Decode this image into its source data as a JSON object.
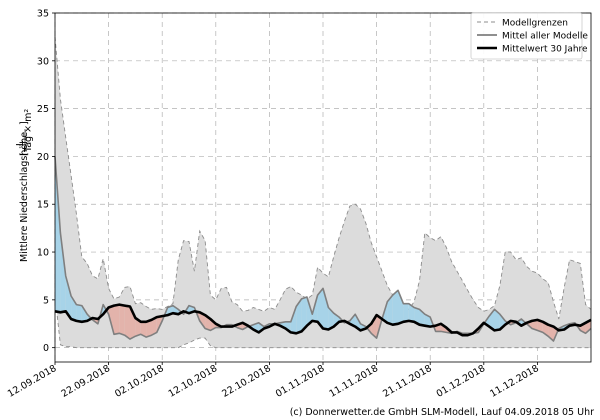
{
  "chart_data": {
    "type": "line",
    "ylabel": "Mittlere Niederschlagshöhe [l/(m²·d)]",
    "ylabel_main": "Mittlere Niederschlagshöhe",
    "ylabel_unit_open": "[",
    "ylabel_unit_num": "L",
    "ylabel_unit_den": "Tag × m²",
    "ylabel_unit_close": "]",
    "ylim": [
      -1.5,
      35
    ],
    "yticks": [
      0,
      5,
      10,
      15,
      20,
      25,
      30,
      35
    ],
    "xlim": [
      0,
      100
    ],
    "grid": true,
    "x_tick_positions": [
      0,
      10,
      20,
      30,
      40,
      50,
      60,
      70,
      80,
      90
    ],
    "x_tick_labels": [
      "12.09.2018",
      "22.09.2018",
      "02.10.2018",
      "12.10.2018",
      "22.10.2018",
      "01.11.2018",
      "11.11.2018",
      "21.11.2018",
      "01.12.2018",
      "11.12.2018"
    ],
    "legend": {
      "position": "top-right",
      "entries": [
        "Modellgrenzen",
        "Mittel aller Modelle",
        "Mittelwert 30 Jahre"
      ]
    },
    "colors": {
      "range_fill": "#dcdcdc",
      "range_line": "#8c8c8c",
      "mean_line": "#7f7f7f",
      "clim_line": "#000000",
      "above_fill": "#a7d3e8",
      "below_fill": "#e3b3ab"
    },
    "series": [
      {
        "name": "Modellgrenzen",
        "upper": [
          32.5,
          26,
          22,
          18,
          14,
          9.5,
          8.8,
          7.5,
          7.2,
          9.3,
          6.2,
          5.1,
          5.3,
          6.3,
          6.4,
          4.6,
          4.7,
          4.3,
          4.0,
          4.1,
          4.0,
          4.3,
          4.6,
          9.2,
          11.2,
          11.1,
          8.0,
          12.2,
          11.2,
          5.5,
          5.0,
          6.2,
          6.3,
          4.8,
          4.5,
          3.8,
          3.9,
          4.2,
          4.0,
          3.8,
          4.2,
          4.0,
          5.0,
          6.1,
          6.4,
          5.8,
          5.5,
          5.1,
          5.5,
          8.4,
          7.8,
          7.4,
          9.5,
          11.5,
          13.2,
          14.8,
          15.0,
          14.5,
          13.0,
          11.0,
          9.5,
          8.0,
          6.5,
          5.5,
          4.8,
          4.2,
          4.0,
          4.8,
          7.0,
          12.0,
          11.5,
          11.2,
          11.6,
          10.5,
          9.0,
          8.0,
          7.0,
          6.0,
          5.0,
          4.2,
          3.8,
          4.0,
          4.4,
          6.5,
          10.0,
          10.0,
          9.2,
          9.4,
          8.5,
          8.0,
          7.8,
          7.2,
          6.8,
          4.8,
          3.0,
          6.3,
          9.2,
          9.0,
          8.8,
          4.5,
          4.0
        ],
        "lower": [
          5.5,
          0.3,
          0.1,
          0.1,
          0.0,
          0.0,
          0.0,
          0.0,
          0.0,
          0.0,
          0.0,
          0.0,
          0.0,
          0.0,
          0.0,
          0.0,
          0.0,
          0.0,
          0.0,
          0.0,
          0.0,
          0.0,
          0.0,
          0.0,
          0.3,
          0.5,
          0.8,
          1.0,
          1.0,
          0.2,
          0.0,
          0.0,
          0.0,
          0.0,
          0.0,
          0.0,
          0.0,
          0.0,
          0.0,
          0.0,
          0.0,
          0.0,
          0.0,
          0.0,
          0.0,
          0.0,
          0.0,
          0.0,
          0.0,
          0.0,
          0.0,
          0.0,
          0.0,
          0.0,
          0.0,
          0.0,
          0.0,
          0.0,
          0.0,
          0.0,
          0.0,
          0.0,
          0.0,
          0.0,
          0.0,
          0.0,
          0.0,
          0.0,
          0.0,
          0.0,
          0.0,
          0.0,
          0.0,
          0.0,
          0.0,
          0.0,
          0.0,
          0.0,
          0.0,
          0.0,
          0.0,
          0.0,
          0.0,
          0.0,
          0.0,
          0.0,
          0.0,
          0.0,
          0.0,
          0.0,
          0.0,
          0.0,
          0.0,
          0.0,
          0.0,
          0.0,
          0.0,
          0.0,
          0.0,
          0.0,
          0.0
        ]
      },
      {
        "name": "Mittel aller Modelle",
        "values": [
          20.0,
          12.0,
          7.5,
          5.4,
          4.5,
          4.4,
          3.5,
          2.9,
          2.5,
          4.5,
          3.5,
          1.4,
          1.5,
          1.3,
          0.9,
          1.2,
          1.4,
          1.1,
          1.3,
          1.6,
          2.8,
          4.2,
          4.4,
          4.0,
          3.5,
          4.4,
          4.2,
          2.8,
          2.0,
          1.8,
          2.1,
          2.1,
          2.4,
          2.4,
          2.1,
          1.9,
          2.2,
          2.4,
          2.6,
          2.2,
          2.5,
          2.5,
          2.6,
          2.7,
          2.7,
          4.3,
          5.1,
          5.3,
          3.5,
          5.5,
          6.2,
          4.2,
          3.6,
          3.2,
          2.6,
          2.8,
          3.5,
          2.5,
          2.2,
          1.5,
          1.0,
          3.0,
          4.8,
          5.5,
          6.0,
          4.6,
          4.6,
          4.2,
          4.0,
          3.5,
          3.2,
          1.7,
          1.7,
          1.6,
          1.5,
          1.7,
          1.5,
          1.5,
          1.5,
          1.6,
          2.5,
          3.3,
          4.0,
          3.5,
          2.8,
          2.4,
          2.6,
          3.0,
          2.5,
          2.0,
          1.8,
          1.6,
          1.2,
          0.7,
          2.0,
          2.3,
          2.5,
          2.6,
          1.8,
          1.5,
          2.0
        ]
      },
      {
        "name": "Mittelwert 30 Jahre",
        "values": [
          3.8,
          3.7,
          3.8,
          3.0,
          2.8,
          2.7,
          2.8,
          3.1,
          3.0,
          3.5,
          4.2,
          4.4,
          4.5,
          4.4,
          4.3,
          3.1,
          2.7,
          2.7,
          2.9,
          3.2,
          3.3,
          3.4,
          3.6,
          3.5,
          3.8,
          3.6,
          3.8,
          3.7,
          3.4,
          3.0,
          2.5,
          2.2,
          2.2,
          2.2,
          2.4,
          2.6,
          2.3,
          1.9,
          1.6,
          2.0,
          2.2,
          2.5,
          2.3,
          2.0,
          1.6,
          1.5,
          1.7,
          2.3,
          2.8,
          2.7,
          2.0,
          1.9,
          2.2,
          2.7,
          2.8,
          2.5,
          2.2,
          1.8,
          2.0,
          2.5,
          3.4,
          3.0,
          2.6,
          2.4,
          2.5,
          2.7,
          2.8,
          2.7,
          2.4,
          2.3,
          2.2,
          2.3,
          2.5,
          2.1,
          1.6,
          1.6,
          1.3,
          1.3,
          1.5,
          2.0,
          2.6,
          2.2,
          1.8,
          1.9,
          2.4,
          2.8,
          2.7,
          2.3,
          2.6,
          2.8,
          2.9,
          2.7,
          2.4,
          2.2,
          1.8,
          1.9,
          2.3,
          2.4,
          2.3,
          2.6,
          2.9
        ]
      }
    ]
  },
  "credit": "(c) Donnerwetter.de GmbH SLM-Modell, Lauf 04.09.2018 05 Uhr"
}
